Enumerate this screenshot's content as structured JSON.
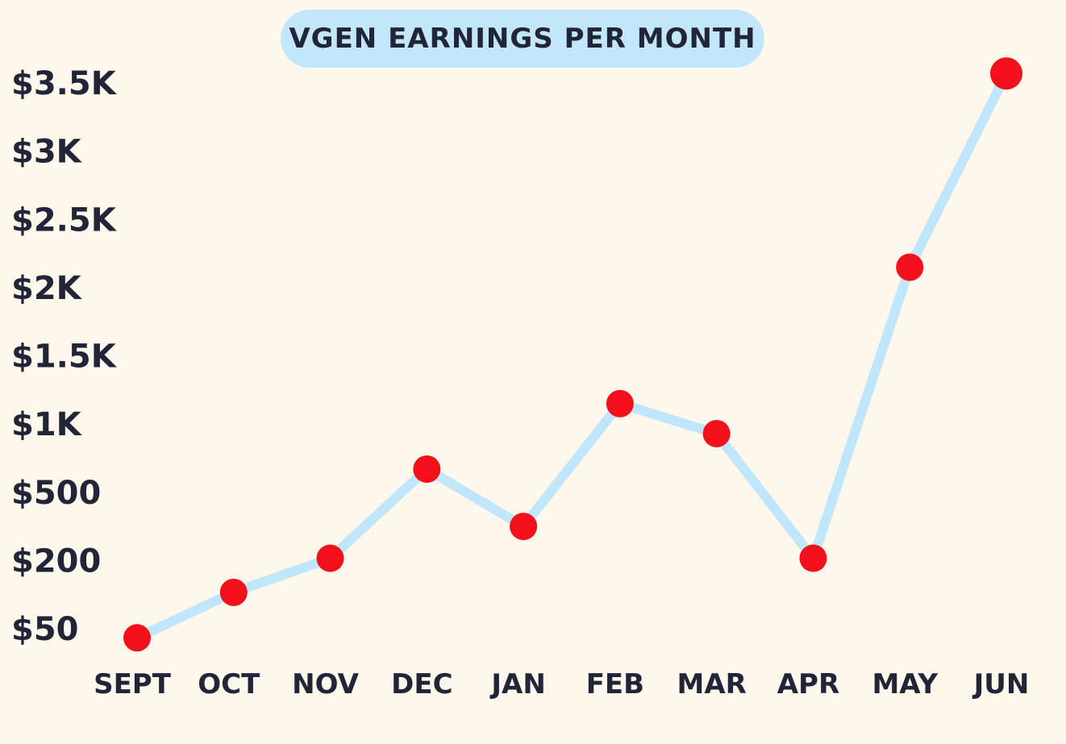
{
  "chart_data": {
    "type": "line",
    "title": "VGEN EARNINGS PER MONTH",
    "xlabel": "",
    "ylabel": "",
    "categories": [
      "Sept",
      "OCT",
      "NOV",
      "DEC",
      "JAN",
      "FEB",
      "MAR",
      "APR",
      "MAY",
      "JUN"
    ],
    "y_tick_labels": [
      "$50",
      "$200",
      "$500",
      "$1K",
      "$1.5K",
      "$2K",
      "$2.5K",
      "$3K",
      "$3.5K"
    ],
    "y_tick_values": [
      50,
      200,
      500,
      1000,
      1500,
      2000,
      2500,
      3000,
      3500
    ],
    "y_scale": "non-linear (labels evenly spaced)",
    "series": [
      {
        "values": [
          30,
          130,
          210,
          670,
          350,
          1150,
          930,
          210,
          2150,
          3570
        ]
      }
    ],
    "ylim": [
      50,
      3500
    ],
    "grid": false,
    "line_color": "#bfe6fb",
    "marker_color": "#f2101a",
    "title_background": "#c2e7fb",
    "text_color": "#222438",
    "background": "#fdf7ec"
  }
}
